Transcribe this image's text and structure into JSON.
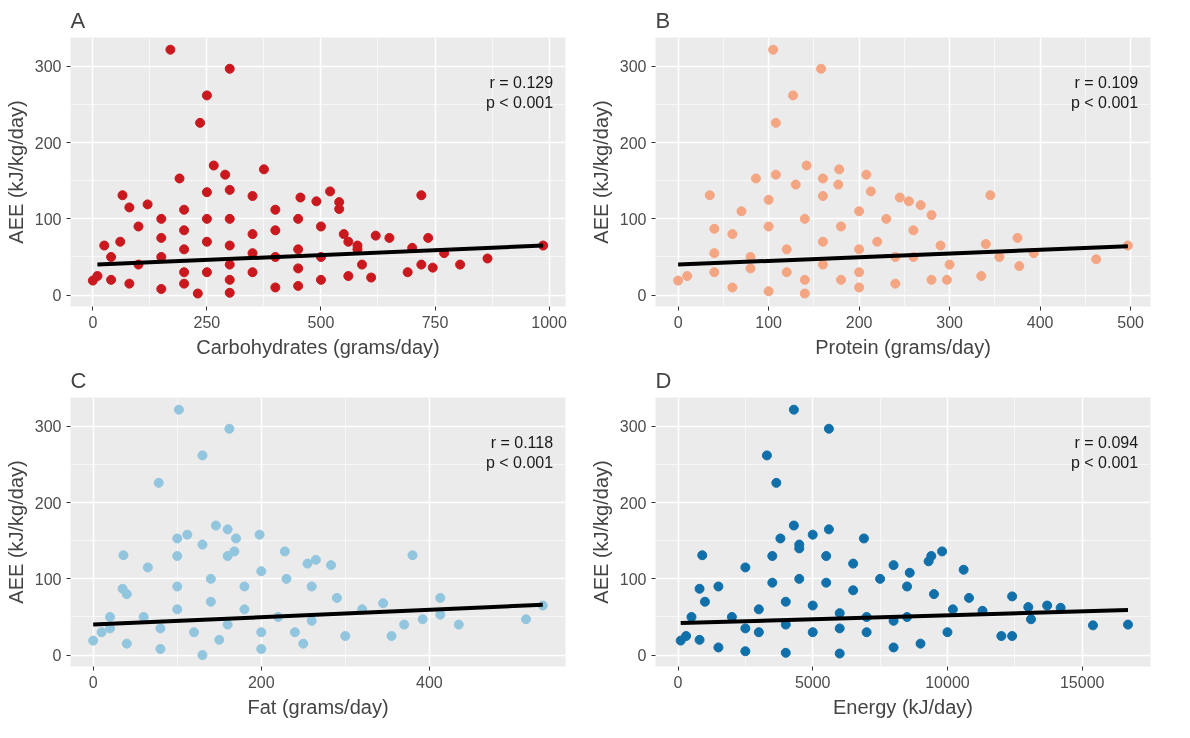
{
  "chart_data": [
    {
      "type": "scatter",
      "title": "A",
      "xlabel": "Carbohydrates (grams/day)",
      "ylabel": "AEE (kJ/kg/day)",
      "xlim": [
        -49,
        1036
      ],
      "ylim": [
        -15,
        338
      ],
      "xticks": [
        0,
        250,
        500,
        750,
        1000
      ],
      "yticks": [
        0,
        100,
        200,
        300
      ],
      "grid": true,
      "marker": "circle",
      "annotations": [
        "r = 0.129",
        "p < 0.001"
      ],
      "series": [
        {
          "color": "#c9191e",
          "x": [
            170,
            300,
            250,
            235,
            265,
            375,
            190,
            290,
            65,
            720,
            80,
            120,
            455,
            520,
            490,
            540,
            540,
            735,
            805,
            865,
            987,
            745,
            720,
            690,
            610,
            25,
            0,
            10,
            770,
            700,
            650,
            620,
            580,
            560,
            40,
            60,
            100,
            150,
            200,
            250,
            300,
            350,
            400,
            450,
            500,
            550,
            580,
            590,
            560,
            500,
            450,
            400,
            300,
            230,
            150,
            80,
            40,
            150,
            200,
            250,
            300,
            350,
            400,
            250,
            300,
            200,
            350,
            450,
            500,
            100,
            250,
            300,
            200,
            400,
            150,
            350,
            450,
            300,
            200
          ],
          "values": [
            322,
            297,
            262,
            226,
            170,
            165,
            153,
            158,
            131,
            131,
            115,
            119,
            128,
            136,
            123,
            122,
            113,
            75,
            40,
            48,
            65,
            36,
            40,
            30,
            23,
            65,
            19,
            25,
            55,
            62,
            75,
            78,
            60,
            70,
            50,
            70,
            90,
            100,
            112,
            135,
            138,
            130,
            112,
            100,
            90,
            80,
            65,
            40,
            25,
            20,
            12,
            10,
            3,
            2,
            8,
            15,
            20,
            50,
            60,
            70,
            65,
            55,
            50,
            30,
            40,
            30,
            80,
            60,
            50,
            40,
            100,
            100,
            85,
            85,
            75,
            30,
            35,
            20,
            15
          ]
        },
        {
          "type": "line",
          "marker": "none",
          "color": "#000000",
          "x": [
            10,
            987
          ],
          "values": [
            40,
            65
          ]
        }
      ]
    },
    {
      "type": "scatter",
      "title": "B",
      "xlabel": "Protein (grams/day)",
      "ylabel": "AEE (kJ/kg/day)",
      "xlim": [
        -25,
        522
      ],
      "ylim": [
        -15,
        338
      ],
      "xticks": [
        0,
        100,
        200,
        300,
        400,
        500
      ],
      "yticks": [
        0,
        100,
        200,
        300
      ],
      "grid": true,
      "marker": "circle",
      "annotations": [
        "r = 0.109",
        "p < 0.001"
      ],
      "series": [
        {
          "color": "#f4a582",
          "x": [
            105,
            158,
            127,
            108,
            142,
            178,
            86,
            108,
            160,
            208,
            177,
            35,
            345,
            213,
            40,
            245,
            255,
            268,
            280,
            375,
            462,
            497,
            377,
            393,
            335,
            0,
            10,
            297,
            340,
            355,
            40,
            60,
            70,
            100,
            130,
            160,
            200,
            230,
            260,
            290,
            300,
            280,
            240,
            200,
            140,
            100,
            60,
            40,
            80,
            120,
            160,
            200,
            240,
            100,
            140,
            180,
            220,
            120,
            160,
            200,
            80,
            260,
            140,
            180
          ],
          "values": [
            322,
            297,
            262,
            226,
            170,
            165,
            153,
            158,
            153,
            158,
            145,
            131,
            131,
            136,
            87,
            128,
            123,
            118,
            105,
            75,
            47,
            65,
            38,
            55,
            25,
            19,
            25,
            20,
            67,
            50,
            55,
            80,
            110,
            125,
            145,
            130,
            110,
            100,
            85,
            65,
            40,
            20,
            15,
            10,
            2,
            5,
            10,
            30,
            50,
            60,
            70,
            60,
            50,
            90,
            100,
            90,
            70,
            30,
            40,
            30,
            35,
            50,
            20,
            20
          ]
        },
        {
          "type": "line",
          "marker": "none",
          "color": "#000000",
          "x": [
            0,
            497
          ],
          "values": [
            40,
            64
          ]
        }
      ]
    },
    {
      "type": "scatter",
      "title": "C",
      "xlabel": "Fat (grams/day)",
      "ylabel": "AEE (kJ/kg/day)",
      "xlim": [
        -27,
        562
      ],
      "ylim": [
        -15,
        338
      ],
      "xticks": [
        0,
        200,
        400
      ],
      "yticks": [
        0,
        100,
        200,
        300
      ],
      "grid": true,
      "marker": "circle",
      "annotations": [
        "r = 0.118",
        "p < 0.001"
      ],
      "series": [
        {
          "color": "#92c5de",
          "x": [
            102,
            162,
            130,
            78,
            146,
            160,
            198,
            170,
            100,
            112,
            228,
            36,
            380,
            168,
            35,
            255,
            265,
            283,
            413,
            413,
            435,
            515,
            535,
            392,
            355,
            0,
            10,
            370,
            345,
            20,
            40,
            65,
            100,
            130,
            160,
            200,
            230,
            260,
            290,
            320,
            300,
            250,
            200,
            130,
            80,
            40,
            20,
            60,
            100,
            140,
            180,
            220,
            260,
            100,
            140,
            180,
            120,
            160,
            200,
            80,
            240,
            150
          ],
          "values": [
            322,
            297,
            262,
            226,
            170,
            165,
            158,
            153,
            153,
            158,
            136,
            131,
            131,
            136,
            87,
            120,
            125,
            118,
            75,
            53,
            40,
            47,
            65,
            47,
            25,
            19,
            30,
            40,
            68,
            50,
            80,
            115,
            130,
            145,
            130,
            110,
            100,
            90,
            75,
            60,
            25,
            15,
            8,
            0,
            8,
            15,
            35,
            50,
            60,
            70,
            60,
            50,
            45,
            90,
            100,
            90,
            30,
            40,
            30,
            35,
            30,
            20
          ]
        },
        {
          "type": "line",
          "marker": "none",
          "color": "#000000",
          "x": [
            0,
            535
          ],
          "values": [
            40,
            66
          ]
        }
      ]
    },
    {
      "type": "scatter",
      "title": "D",
      "xlabel": "Energy (kJ/day)",
      "ylabel": "AEE (kJ/kg/day)",
      "xlim": [
        -835,
        17535
      ],
      "ylim": [
        -15,
        338
      ],
      "xticks": [
        0,
        5000,
        10000,
        15000
      ],
      "yticks": [
        0,
        100,
        200,
        300
      ],
      "grid": true,
      "marker": "circle",
      "annotations": [
        "r = 0.094",
        "p < 0.001"
      ],
      "series": [
        {
          "color": "#1170aa",
          "x": [
            4300,
            5600,
            3300,
            3650,
            4300,
            5600,
            5000,
            3800,
            6900,
            4500,
            900,
            9800,
            9400,
            9300,
            10600,
            800,
            8000,
            8600,
            12400,
            13000,
            13700,
            14200,
            15400,
            16700,
            13100,
            12000,
            12400,
            100,
            300,
            10800,
            11300,
            500,
            1000,
            1500,
            2500,
            3500,
            4500,
            5500,
            6500,
            7500,
            8500,
            9500,
            10200,
            10000,
            9000,
            8000,
            6000,
            4000,
            2500,
            1500,
            800,
            2000,
            3000,
            4000,
            5000,
            6000,
            7000,
            8000,
            3500,
            4500,
            5500,
            6500,
            3000,
            4000,
            5000,
            6000,
            7000,
            2500,
            8500
          ],
          "values": [
            322,
            297,
            262,
            226,
            170,
            165,
            158,
            153,
            153,
            145,
            131,
            136,
            130,
            123,
            112,
            87,
            118,
            108,
            77,
            63,
            65,
            62,
            39,
            40,
            47,
            25,
            25,
            19,
            25,
            75,
            58,
            50,
            70,
            90,
            115,
            130,
            140,
            130,
            120,
            100,
            90,
            80,
            60,
            30,
            15,
            10,
            2,
            3,
            5,
            10,
            20,
            50,
            60,
            70,
            65,
            55,
            50,
            45,
            95,
            100,
            95,
            85,
            30,
            40,
            30,
            35,
            30,
            35,
            50
          ]
        },
        {
          "type": "line",
          "marker": "none",
          "color": "#000000",
          "x": [
            100,
            16700
          ],
          "values": [
            42,
            59
          ]
        }
      ]
    }
  ]
}
